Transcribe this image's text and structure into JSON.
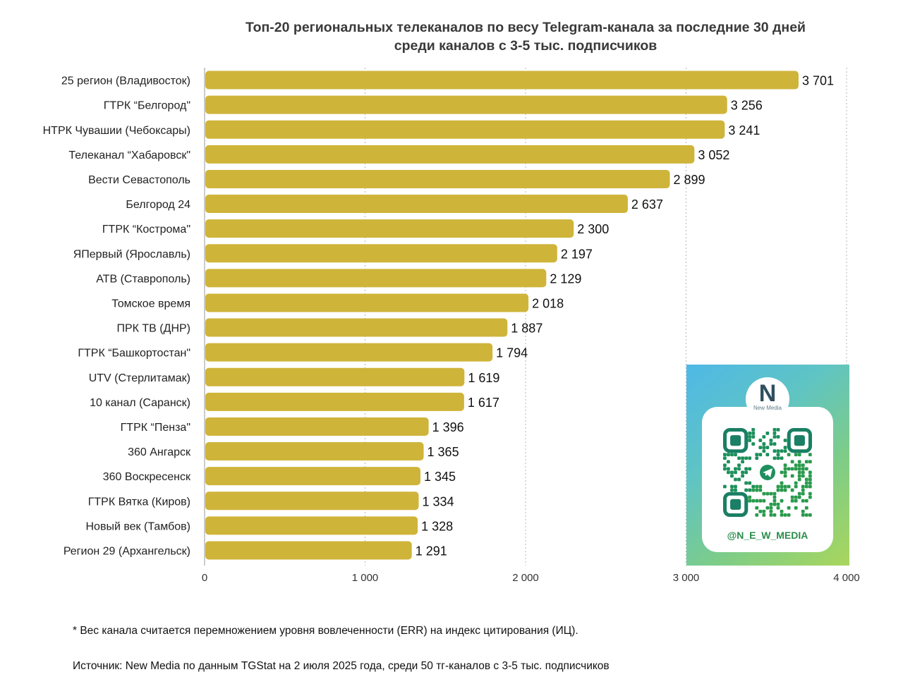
{
  "chart_data": {
    "type": "bar",
    "orientation": "horizontal",
    "title": "Топ-20 региональных телеканалов по весу Telegram-канала за последние 30 дней",
    "subtitle": "среди каналов с 3-5 тыс. подписчиков",
    "categories": [
      "25 регион (Владивосток)",
      "ГТРК “Белгород\"",
      "НТРК Чувашии (Чебоксары)",
      "Телеканал “Хабаровск\"",
      "Вести Севастополь",
      "Белгород 24",
      "ГТРК “Кострома\"",
      "ЯПервый (Ярославль)",
      "АТВ (Ставрополь)",
      "Томское время",
      "ПРК ТВ (ДНР)",
      "ГТРК “Башкортостан\"",
      "UTV (Стерлитамак)",
      "10 канал (Саранск)",
      "ГТРК “Пенза\"",
      "360 Ангарск",
      "360 Воскресенск",
      "ГТРК Вятка (Киров)",
      "Новый век (Тамбов)",
      "Регион 29 (Архангельск)"
    ],
    "values": [
      3701,
      3256,
      3241,
      3052,
      2899,
      2637,
      2300,
      2197,
      2129,
      2018,
      1887,
      1794,
      1619,
      1617,
      1396,
      1365,
      1345,
      1334,
      1328,
      1291
    ],
    "value_labels": [
      "3 701",
      "3 256",
      "3 241",
      "3 052",
      "2 899",
      "2 637",
      "2 300",
      "2 197",
      "2 129",
      "2 018",
      "1 887",
      "1 794",
      "1 619",
      "1 617",
      "1 396",
      "1 365",
      "1 345",
      "1 334",
      "1 328",
      "1 291"
    ],
    "xlim": [
      0,
      4000
    ],
    "xticks": [
      0,
      1000,
      2000,
      3000,
      4000
    ],
    "xtick_labels": [
      "0",
      "1 000",
      "2 000",
      "3 000",
      "4 000"
    ],
    "xlabel": "",
    "ylabel": "",
    "grid": "vertical dotted",
    "bar_color": "#cfb43a",
    "legend": "none"
  },
  "promo": {
    "logo_letter": "N",
    "logo_text": "New Media",
    "handle": "@N_E_W_MEDIA",
    "icon": "qr-code-icon"
  },
  "notes": {
    "footnote": "* Вес канала считается перемножением уровня вовлеченности (ERR) на индекс цитирования (ИЦ).",
    "source": "Источник: New Media по данным TGStat на 2 июля 2025 года, среди 50 тг-каналов с 3-5 тыс. подписчиков"
  }
}
